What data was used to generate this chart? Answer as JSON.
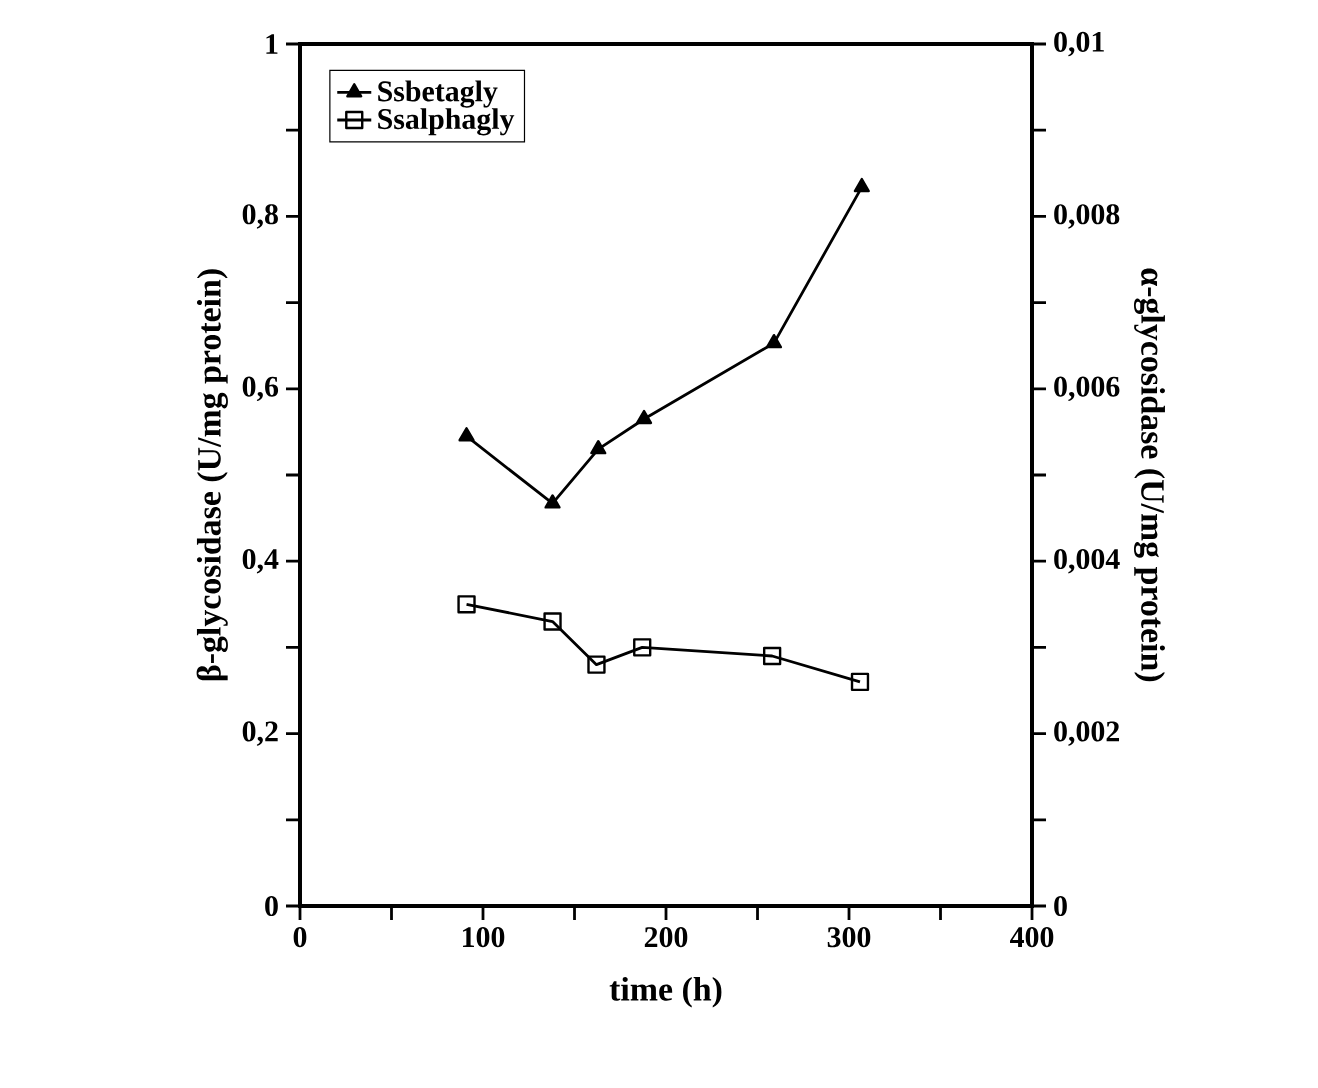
{
  "chart_data": {
    "type": "line",
    "xlabel": "time (h)",
    "ylabel": "β-glycosidase  (U/mg protein)",
    "y2label": "α-glycosidase (U/mg protein)",
    "series": [
      {
        "name": "Ssbetagly",
        "color": "#000000",
        "marker": "triangle",
        "x": [
          91,
          138,
          163,
          188,
          259,
          307
        ],
        "values": [
          0.545,
          0.467,
          0.53,
          0.565,
          0.653,
          0.834
        ]
      },
      {
        "name": "Ssalphagly",
        "color": "#000000",
        "marker": "square",
        "axis": "y2",
        "x": [
          91,
          138,
          162,
          187,
          258,
          306
        ],
        "values": [
          0.0035,
          0.0033,
          0.0028,
          0.003,
          0.0029,
          0.0026
        ]
      }
    ],
    "xlim": [
      0,
      400
    ],
    "ylim": [
      0,
      1
    ],
    "y2lim": [
      0,
      0.01
    ],
    "xticks": [
      0,
      {
        "value": 50,
        "label": null
      },
      100,
      {
        "value": 150,
        "label": null
      },
      200,
      {
        "value": 250,
        "label": null
      },
      300,
      {
        "value": 350,
        "label": null
      },
      400
    ],
    "yticks": [
      0,
      {
        "value": 0.1,
        "label": null
      },
      {
        "value": 0.2,
        "label": "0,2"
      },
      {
        "value": 0.3,
        "label": null
      },
      {
        "value": 0.4,
        "label": "0,4"
      },
      {
        "value": 0.5,
        "label": null
      },
      {
        "value": 0.6,
        "label": "0,6"
      },
      {
        "value": 0.7,
        "label": null
      },
      {
        "value": 0.8,
        "label": "0,8"
      },
      {
        "value": 0.9,
        "label": null
      },
      1
    ],
    "y2ticks": [
      0,
      {
        "value": 0.001,
        "label": null
      },
      {
        "value": 0.002,
        "label": "0,002"
      },
      {
        "value": 0.003,
        "label": null
      },
      {
        "value": 0.004,
        "label": "0,004"
      },
      {
        "value": 0.005,
        "label": null
      },
      {
        "value": 0.006,
        "label": "0,006"
      },
      {
        "value": 0.007,
        "label": null
      },
      {
        "value": 0.008,
        "label": "0,008"
      },
      {
        "value": 0.009,
        "label": null
      },
      {
        "value": 0.01,
        "label": "0,01"
      }
    ],
    "legend": "top left",
    "grid": false,
    "line_style": "solid"
  }
}
